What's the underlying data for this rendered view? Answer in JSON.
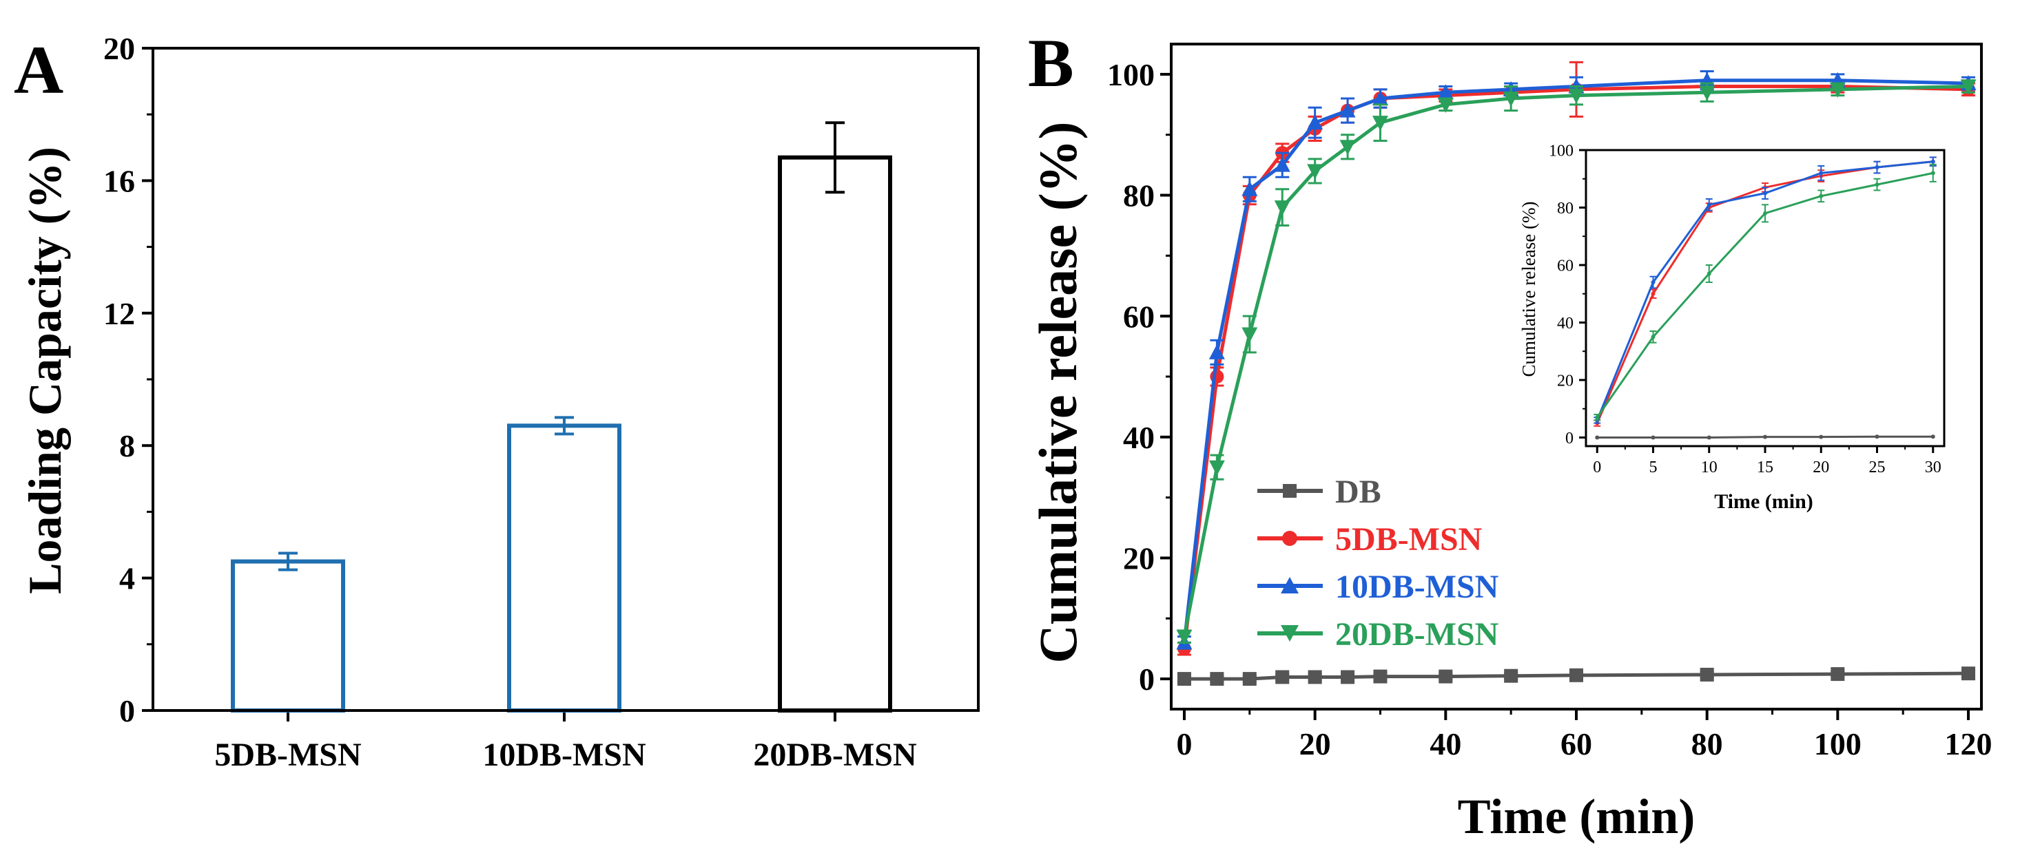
{
  "colors": {
    "db": "#555555",
    "msn5": "#ee2c2c",
    "msn10": "#1f5fd6",
    "msn20": "#2aa05a",
    "barA": "#1f6fb0",
    "barC": "#000000"
  },
  "chart_data": [
    {
      "type": "bar",
      "panel_label": "A",
      "title": "",
      "xlabel": "",
      "ylabel": "Loading Capacity (%)",
      "ylim": [
        0,
        20
      ],
      "yticks": [
        0,
        4,
        8,
        12,
        16,
        20
      ],
      "categories": [
        "5DB-MSN",
        "10DB-MSN",
        "20DB-MSN"
      ],
      "values": [
        4.5,
        8.6,
        16.7
      ],
      "errors": [
        0.25,
        0.25,
        1.05
      ],
      "bar_colors": [
        "#1f6fb0",
        "#1f6fb0",
        "#000000"
      ]
    },
    {
      "type": "line",
      "panel_label": "B",
      "title": "",
      "xlabel": "Time (min)",
      "ylabel": "Cumulative release (%)",
      "xlim": [
        -2,
        122
      ],
      "ylim": [
        -5,
        105
      ],
      "xticks": [
        0,
        20,
        40,
        60,
        80,
        100,
        120
      ],
      "yticks": [
        0,
        20,
        40,
        60,
        80,
        100
      ],
      "legend_position": "lower-left",
      "series": [
        {
          "name": "DB",
          "marker": "square",
          "color": "#555555",
          "x": [
            0,
            5,
            10,
            15,
            20,
            25,
            30,
            40,
            50,
            60,
            80,
            100,
            120
          ],
          "y": [
            0,
            0,
            0,
            0.3,
            0.3,
            0.3,
            0.4,
            0.4,
            0.5,
            0.6,
            0.7,
            0.8,
            0.9
          ],
          "err": [
            0.5,
            0.5,
            0.5,
            0.5,
            0.5,
            0.5,
            0.5,
            0.5,
            0.5,
            0.5,
            0.5,
            0.5,
            0.5
          ]
        },
        {
          "name": "5DB-MSN",
          "marker": "circle",
          "color": "#ee2c2c",
          "x": [
            0,
            5,
            10,
            15,
            20,
            25,
            30,
            40,
            50,
            60,
            80,
            100,
            120
          ],
          "y": [
            5,
            50,
            80,
            87,
            91,
            94,
            96,
            96.5,
            97,
            97.5,
            98,
            98,
            97.5
          ],
          "err": [
            1,
            1.5,
            1.5,
            1.5,
            2,
            2,
            1.5,
            1,
            1,
            4.5,
            1,
            1,
            1
          ]
        },
        {
          "name": "10DB-MSN",
          "marker": "triangle-up",
          "color": "#1f5fd6",
          "x": [
            0,
            5,
            10,
            15,
            20,
            25,
            30,
            40,
            50,
            60,
            80,
            100,
            120
          ],
          "y": [
            6,
            54,
            81,
            85,
            92,
            94,
            96,
            97,
            97.5,
            98,
            99,
            99,
            98.5
          ],
          "err": [
            1,
            2,
            2,
            2,
            2.5,
            2,
            1.5,
            1,
            1,
            1.5,
            1.5,
            1,
            1
          ]
        },
        {
          "name": "20DB-MSN",
          "marker": "triangle-down",
          "color": "#2aa05a",
          "x": [
            0,
            5,
            10,
            15,
            20,
            25,
            30,
            40,
            50,
            60,
            80,
            100,
            120
          ],
          "y": [
            7,
            35,
            57,
            78,
            84,
            88,
            92,
            95,
            96,
            96.5,
            97,
            97.5,
            98
          ],
          "err": [
            1,
            2,
            3,
            3,
            2,
            2,
            3,
            1,
            2,
            1.5,
            1.5,
            1,
            1
          ]
        }
      ],
      "inset": {
        "xlabel": "Time (min)",
        "ylabel": "Cumulative release (%)",
        "xlim": [
          -1,
          31
        ],
        "ylim": [
          -3,
          100
        ],
        "xticks": [
          0,
          5,
          10,
          15,
          20,
          25,
          30
        ],
        "yticks": [
          0,
          20,
          40,
          60,
          80,
          100
        ],
        "series": [
          {
            "name": "DB",
            "color": "#555555",
            "x": [
              0,
              5,
              10,
              15,
              20,
              25,
              30
            ],
            "y": [
              0,
              0,
              0,
              0.2,
              0.2,
              0.3,
              0.3
            ],
            "err": [
              0,
              0,
              0,
              0,
              0,
              0,
              0
            ]
          },
          {
            "name": "5DB-MSN",
            "color": "#ee2c2c",
            "x": [
              0,
              5,
              10,
              15,
              20,
              25,
              30
            ],
            "y": [
              5,
              50,
              80,
              87,
              91,
              94,
              96
            ],
            "err": [
              1,
              1.5,
              1.5,
              1.5,
              2,
              2,
              1.5
            ]
          },
          {
            "name": "10DB-MSN",
            "color": "#1f5fd6",
            "x": [
              0,
              5,
              10,
              15,
              20,
              25,
              30
            ],
            "y": [
              6,
              54,
              81,
              85,
              92,
              94,
              96
            ],
            "err": [
              1,
              2,
              2,
              2,
              2.5,
              2,
              1.5
            ]
          },
          {
            "name": "20DB-MSN",
            "color": "#2aa05a",
            "x": [
              0,
              5,
              10,
              15,
              20,
              25,
              30
            ],
            "y": [
              7,
              35,
              57,
              78,
              84,
              88,
              92
            ],
            "err": [
              1,
              2,
              3,
              3,
              2,
              2,
              3
            ]
          }
        ]
      }
    }
  ]
}
